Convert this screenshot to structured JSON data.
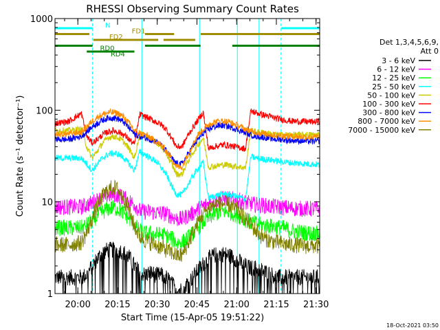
{
  "chart_data": {
    "type": "line",
    "title": "RHESSI Observing Summary Count Rates",
    "xlabel": "Start Time (15-Apr-05 19:51:22)",
    "ylabel": "Count Rate (s⁻¹ detector⁻¹)",
    "yscale": "log",
    "ylim": [
      1,
      1000
    ],
    "xlim_minutes": [
      0,
      100
    ],
    "x_tick_labels": [
      "20:00",
      "20:15",
      "20:30",
      "20:45",
      "21:00",
      "21:15",
      "21:30"
    ],
    "x_tick_minutes": [
      8.63,
      23.63,
      38.63,
      53.63,
      68.63,
      83.63,
      98.63
    ],
    "y_tick_labels": [
      "1",
      "10",
      "100",
      "1000"
    ],
    "y_tick_values": [
      1,
      10,
      100,
      1000
    ],
    "grid": false,
    "legend_header": [
      "Det 1,3,4,5,6,9,",
      "Att 0"
    ],
    "legend_position": "right",
    "timestamp": "18-Oct-2021 03:50",
    "series": [
      {
        "name": "3 - 6 keV",
        "color": "#000000",
        "x": [
          0,
          5,
          10,
          12,
          14,
          16,
          18,
          20,
          22,
          24,
          26,
          28,
          30,
          32,
          34,
          36,
          38,
          40,
          42,
          44,
          46,
          48,
          50,
          52,
          54,
          56,
          58,
          60,
          62,
          64,
          66,
          68,
          70,
          72,
          74,
          76,
          78,
          80,
          82,
          84,
          86,
          88,
          90,
          95,
          100
        ],
        "y": [
          1.5,
          1.5,
          1.5,
          1.6,
          2.0,
          2.4,
          2.8,
          3.0,
          3.0,
          3.0,
          2.8,
          2.5,
          2.0,
          1.7,
          1.6,
          1.7,
          1.6,
          1.6,
          1.5,
          1.3,
          1.1,
          1.1,
          1.3,
          1.5,
          1.8,
          2.1,
          2.4,
          2.6,
          2.7,
          2.7,
          2.6,
          2.4,
          2.2,
          2.0,
          1.9,
          1.9,
          1.8,
          1.7,
          1.6,
          1.5,
          1.5,
          1.5,
          1.5,
          1.5,
          1.5
        ]
      },
      {
        "name": "6 - 12 keV",
        "color": "#ff00ff",
        "x": [
          0,
          5,
          10,
          12,
          14,
          16,
          18,
          20,
          22,
          24,
          26,
          28,
          30,
          32,
          34,
          36,
          38,
          40,
          42,
          44,
          46,
          48,
          50,
          52,
          54,
          56,
          58,
          60,
          62,
          64,
          66,
          68,
          70,
          72,
          74,
          76,
          78,
          80,
          82,
          84,
          86,
          88,
          90,
          95,
          100
        ],
        "y": [
          8.8,
          8.8,
          8.8,
          9.2,
          9.8,
          10.5,
          11.2,
          11.8,
          12.0,
          11.8,
          11.0,
          10.2,
          9.4,
          8.0,
          7.8,
          7.8,
          7.6,
          7.6,
          7.4,
          7.0,
          6.5,
          6.5,
          7.0,
          7.5,
          8.3,
          9.0,
          9.6,
          10.2,
          10.6,
          10.9,
          10.8,
          10.5,
          10.2,
          9.8,
          9.5,
          9.3,
          9.2,
          9.0,
          8.9,
          8.8,
          8.7,
          8.6,
          8.5,
          8.4,
          8.4
        ]
      },
      {
        "name": "12 - 25 keV",
        "color": "#00ff00",
        "x": [
          0,
          5,
          10,
          12,
          14,
          16,
          18,
          20,
          22,
          24,
          26,
          28,
          30,
          32,
          34,
          36,
          38,
          40,
          42,
          44,
          46,
          48,
          50,
          52,
          54,
          56,
          58,
          60,
          62,
          64,
          66,
          68,
          70,
          72,
          74,
          76,
          78,
          80,
          82,
          84,
          86,
          88,
          90,
          95,
          100
        ],
        "y": [
          5.2,
          5.2,
          5.2,
          5.6,
          6.2,
          7.0,
          7.8,
          8.4,
          8.6,
          8.3,
          7.6,
          6.6,
          5.6,
          4.8,
          4.5,
          4.5,
          4.4,
          4.4,
          4.3,
          4.0,
          3.6,
          3.6,
          4.0,
          4.5,
          5.2,
          6.0,
          6.7,
          7.3,
          7.7,
          7.9,
          7.7,
          7.3,
          6.9,
          6.4,
          6.0,
          5.8,
          5.6,
          5.5,
          5.4,
          5.3,
          5.2,
          5.0,
          4.8,
          4.6,
          4.5
        ]
      },
      {
        "name": "25 - 50 keV",
        "color": "#00ffff",
        "x": [
          0,
          5,
          10,
          12,
          14,
          16,
          18,
          20,
          22,
          24,
          26,
          28,
          30,
          32,
          34,
          36,
          38,
          40,
          42,
          44,
          46,
          48,
          50,
          52,
          54,
          56,
          58,
          60,
          62,
          64,
          66,
          68,
          70,
          72,
          74,
          76,
          78,
          80,
          82,
          84,
          86,
          88,
          90,
          95,
          100
        ],
        "y": [
          30,
          30,
          30,
          26,
          22,
          26,
          30,
          33,
          34,
          33,
          30,
          26,
          22,
          35,
          33,
          30,
          28,
          24,
          20,
          15,
          12,
          12,
          15,
          19,
          23,
          27,
          11,
          11.5,
          12,
          12.3,
          12,
          11.6,
          11.2,
          10.8,
          31,
          30,
          29.5,
          29,
          28.5,
          28,
          27.5,
          27,
          26.5,
          26,
          25.5
        ]
      },
      {
        "name": "50 - 100 keV",
        "color": "#cccc00",
        "x": [
          0,
          5,
          10,
          12,
          14,
          16,
          18,
          20,
          22,
          24,
          26,
          28,
          30,
          32,
          34,
          36,
          38,
          40,
          42,
          44,
          46,
          48,
          50,
          52,
          54,
          56,
          58,
          60,
          62,
          64,
          66,
          68,
          70,
          72,
          74,
          76,
          78,
          80,
          82,
          84,
          86,
          88,
          90,
          95,
          100
        ],
        "y": [
          60,
          60,
          62,
          40,
          30,
          36,
          44,
          50,
          52,
          50,
          45,
          38,
          30,
          55,
          53,
          50,
          46,
          40,
          34,
          26,
          20,
          20,
          27,
          34,
          42,
          50,
          24,
          24.5,
          25,
          25.5,
          25,
          24.5,
          24,
          23.5,
          60,
          58,
          57,
          56,
          55,
          54,
          54,
          54,
          54,
          54,
          54
        ]
      },
      {
        "name": "100 - 300 keV",
        "color": "#ff0000",
        "x": [
          0,
          5,
          10,
          12,
          14,
          16,
          18,
          20,
          22,
          24,
          26,
          28,
          30,
          32,
          34,
          36,
          38,
          40,
          42,
          44,
          46,
          48,
          50,
          52,
          54,
          56,
          58,
          60,
          62,
          64,
          66,
          68,
          70,
          72,
          74,
          76,
          78,
          80,
          82,
          84,
          86,
          88,
          90,
          95,
          100
        ],
        "y": [
          72,
          75,
          92,
          52,
          44,
          48,
          54,
          58,
          60,
          58,
          54,
          48,
          42,
          90,
          85,
          80,
          75,
          70,
          62,
          50,
          40,
          40,
          52,
          64,
          78,
          95,
          38,
          40,
          41,
          42,
          41,
          40,
          39,
          38,
          98,
          94,
          90,
          87,
          84,
          81,
          79,
          77,
          76,
          75,
          75
        ]
      },
      {
        "name": "300 - 800 keV",
        "color": "#0000ff",
        "x": [
          0,
          5,
          10,
          12,
          14,
          16,
          18,
          20,
          22,
          24,
          26,
          28,
          30,
          32,
          34,
          36,
          38,
          40,
          42,
          44,
          46,
          48,
          50,
          52,
          54,
          56,
          58,
          60,
          62,
          64,
          66,
          68,
          70,
          72,
          74,
          76,
          78,
          80,
          82,
          84,
          86,
          88,
          90,
          95,
          100
        ],
        "y": [
          48,
          48,
          52,
          58,
          66,
          72,
          78,
          82,
          83,
          80,
          74,
          64,
          55,
          52,
          50,
          48,
          46,
          42,
          36,
          30,
          26,
          26,
          32,
          40,
          48,
          56,
          62,
          66,
          68,
          68,
          66,
          63,
          60,
          57,
          54,
          52,
          51,
          50,
          49,
          48,
          48,
          47,
          47,
          46,
          46
        ]
      },
      {
        "name": "800 - 7000 keV",
        "color": "#ff8c00",
        "x": [
          0,
          5,
          10,
          12,
          14,
          16,
          18,
          20,
          22,
          24,
          26,
          28,
          30,
          32,
          34,
          36,
          38,
          40,
          42,
          44,
          46,
          48,
          50,
          52,
          54,
          56,
          58,
          60,
          62,
          64,
          66,
          68,
          70,
          72,
          74,
          76,
          78,
          80,
          82,
          84,
          86,
          88,
          90,
          95,
          100
        ],
        "y": [
          54,
          55,
          58,
          66,
          76,
          84,
          90,
          94,
          95,
          92,
          84,
          72,
          60,
          56,
          54,
          50,
          46,
          42,
          36,
          30,
          24,
          24,
          32,
          42,
          54,
          62,
          70,
          74,
          76,
          76,
          74,
          70,
          66,
          62,
          59,
          57,
          56,
          55,
          54,
          53,
          53,
          52,
          52,
          51,
          51
        ]
      },
      {
        "name": "7000 - 15000 keV",
        "color": "#808000",
        "x": [
          0,
          5,
          10,
          12,
          14,
          16,
          18,
          20,
          22,
          24,
          26,
          28,
          30,
          32,
          34,
          36,
          38,
          40,
          42,
          44,
          46,
          48,
          50,
          52,
          54,
          56,
          58,
          60,
          62,
          64,
          66,
          68,
          70,
          72,
          74,
          76,
          78,
          80,
          82,
          84,
          86,
          88,
          90,
          95,
          100
        ],
        "y": [
          3.4,
          3.4,
          3.6,
          4.6,
          6.5,
          9.0,
          11.5,
          13.5,
          14.5,
          13.5,
          11.0,
          8.0,
          5.5,
          4.2,
          3.8,
          3.6,
          3.4,
          3.2,
          3.0,
          2.8,
          2.6,
          2.6,
          3.4,
          4.5,
          6.0,
          7.5,
          8.6,
          9.2,
          9.6,
          9.6,
          9.2,
          8.5,
          7.6,
          6.6,
          5.6,
          4.8,
          4.2,
          3.9,
          3.7,
          3.6,
          3.5,
          3.4,
          3.4,
          3.3,
          3.3
        ]
      }
    ],
    "flags": [
      {
        "name": "N",
        "color": "#00ffff",
        "level": 1.0,
        "segments": [
          [
            0,
            14.2
          ],
          [
            85.4,
            100
          ]
        ]
      },
      {
        "name": "FD1",
        "color": "#a08c00",
        "level": 0.75,
        "segments": [
          [
            0,
            13
          ],
          [
            34,
            45
          ],
          [
            55,
            100
          ]
        ]
      },
      {
        "name": "FD2",
        "color": "#a08c00",
        "level": 0.62,
        "segments": [
          [
            14.5,
            39
          ],
          [
            41,
            53
          ]
        ]
      },
      {
        "name": "RD0",
        "color": "#008000",
        "level": 0.5,
        "segments": [
          [
            0,
            14.2
          ],
          [
            34,
            55
          ],
          [
            67,
            100
          ]
        ]
      },
      {
        "name": "RD4",
        "color": "#008000",
        "level": 0.42,
        "segments": [
          [
            12,
            30
          ]
        ]
      }
    ],
    "vertical_markers": [
      {
        "kind": "solid",
        "x": 0,
        "color": "#00ffff"
      },
      {
        "kind": "solid",
        "x": 100,
        "color": "#00ffff"
      },
      {
        "kind": "dashed",
        "x": 14.2,
        "color": "#00ffff"
      },
      {
        "kind": "dashed",
        "x": 85.4,
        "color": "#00ffff"
      },
      {
        "kind": "solid",
        "x": 32.8,
        "color": "#00ffff"
      },
      {
        "kind": "solid",
        "x": 54.6,
        "color": "#00ffff"
      },
      {
        "kind": "solid",
        "x": 68.9,
        "color": "#00ffff"
      },
      {
        "kind": "solid",
        "x": 77.1,
        "color": "#00ffff"
      }
    ]
  }
}
